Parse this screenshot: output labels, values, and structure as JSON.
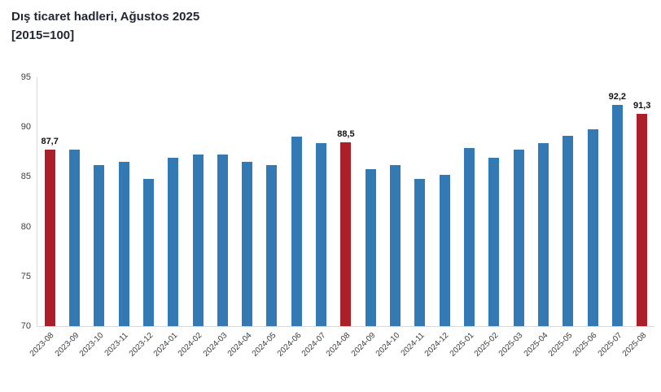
{
  "header": {
    "title": "Dış ticaret hadleri, Ağustos 2025",
    "subtitle": "[2015=100]"
  },
  "chart_data": {
    "type": "bar",
    "title": "Dış ticaret hadleri, Ağustos 2025",
    "subtitle": "[2015=100]",
    "categories": [
      "2023-08",
      "2023-09",
      "2023-10",
      "2023-11",
      "2023-12",
      "2024-01",
      "2024-02",
      "2024-03",
      "2024-04",
      "2024-05",
      "2024-06",
      "2024-07",
      "2024-08",
      "2024-09",
      "2024-10",
      "2024-11",
      "2024-12",
      "2025-01",
      "2025-02",
      "2025-03",
      "2025-04",
      "2025-05",
      "2025-06",
      "2025-07",
      "2025-08"
    ],
    "values": [
      87.7,
      87.7,
      86.2,
      86.5,
      84.8,
      86.9,
      87.2,
      87.2,
      86.5,
      86.2,
      89.0,
      88.4,
      88.5,
      85.8,
      86.2,
      84.8,
      85.2,
      87.9,
      86.9,
      87.7,
      88.4,
      89.1,
      89.8,
      92.2,
      91.3
    ],
    "value_labels": [
      "87,7",
      "",
      "",
      "",
      "",
      "",
      "",
      "",
      "",
      "",
      "",
      "",
      "88,5",
      "",
      "",
      "",
      "",
      "",
      "",
      "",
      "",
      "",
      "",
      "92,2",
      "91,3"
    ],
    "highlight_indices": [
      0,
      12,
      24
    ],
    "xlabel": "",
    "ylabel": "",
    "ylim": [
      70,
      95
    ],
    "yticks": [
      95,
      90,
      85,
      80,
      75,
      70
    ],
    "grid": false,
    "legend_position": "none",
    "colors": {
      "bar": "#337ab4",
      "highlight_bar": "#aa1f28",
      "axis_line": "#d9d9d9",
      "tick_text": "#3d3d3d",
      "value_label_text": "#111111",
      "title_text": "#222733"
    }
  }
}
